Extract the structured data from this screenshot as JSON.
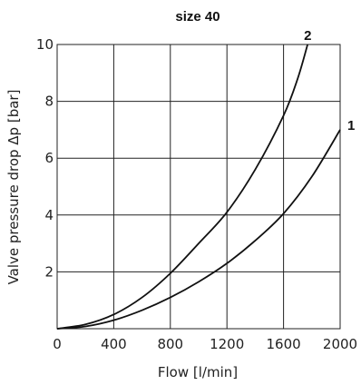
{
  "chart_data": {
    "type": "line",
    "title": "size 40",
    "xlabel": "Flow [l/min]",
    "ylabel": "Valve pressure drop Δp [bar]",
    "xlim": [
      0,
      2000
    ],
    "ylim": [
      0,
      10
    ],
    "xticks": [
      0,
      400,
      800,
      1200,
      1600,
      2000
    ],
    "yticks": [
      2,
      4,
      6,
      8,
      10
    ],
    "x_tick_labels": [
      "0",
      "400",
      "800",
      "1200",
      "1600",
      "2000"
    ],
    "y_tick_labels": [
      "2",
      "4",
      "6",
      "8",
      "10"
    ],
    "grid": true,
    "series": [
      {
        "name": "1",
        "x": [
          0,
          200,
          400,
          600,
          800,
          1000,
          1200,
          1400,
          1600,
          1800,
          2000
        ],
        "y": [
          0,
          0.08,
          0.3,
          0.65,
          1.1,
          1.65,
          2.3,
          3.1,
          4.05,
          5.35,
          7.0
        ]
      },
      {
        "name": "2",
        "x": [
          0,
          200,
          400,
          600,
          800,
          1000,
          1200,
          1400,
          1600,
          1700,
          1770
        ],
        "y": [
          0,
          0.15,
          0.5,
          1.1,
          1.95,
          3.0,
          4.1,
          5.6,
          7.5,
          8.8,
          10.0
        ]
      }
    ]
  }
}
